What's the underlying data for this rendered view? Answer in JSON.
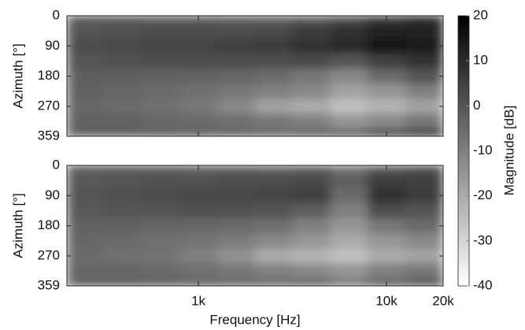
{
  "chart_data": {
    "type": "heatmap",
    "xlabel": "Frequency [Hz]",
    "ylabel": "Azimuth [°]",
    "xscale": "log",
    "xlim": [
      200,
      20000
    ],
    "xticks": [
      {
        "value": 1000,
        "label": "1k"
      },
      {
        "value": 10000,
        "label": "10k"
      },
      {
        "value": 20000,
        "label": "20k"
      }
    ],
    "ylim": [
      0,
      359
    ],
    "yticks": [
      0,
      90,
      180,
      270,
      359
    ],
    "x": [
      250,
      400,
      630,
      1000,
      1600,
      2500,
      4000,
      6300,
      10000,
      16000
    ],
    "y": [
      0,
      45,
      90,
      135,
      180,
      225,
      270,
      315,
      359
    ],
    "colormap": [
      "#ffffff",
      "#000000"
    ],
    "colorbar": {
      "label": "Magnitude [dB]",
      "lim": [
        -40,
        20
      ],
      "ticks": [
        -40,
        -30,
        -20,
        -10,
        0,
        10,
        20
      ]
    },
    "panels": [
      {
        "z": [
          [
            -2,
            -2,
            -3,
            -3,
            -4,
            -5,
            -3,
            0,
            5,
            8
          ],
          [
            0,
            1,
            2,
            2,
            2,
            3,
            6,
            8,
            12,
            12
          ],
          [
            2,
            3,
            4,
            4,
            5,
            6,
            8,
            10,
            15,
            14
          ],
          [
            0,
            1,
            2,
            2,
            2,
            2,
            3,
            0,
            5,
            8
          ],
          [
            -2,
            -2,
            -3,
            -3,
            -4,
            -5,
            -8,
            -12,
            -5,
            0
          ],
          [
            -3,
            -4,
            -5,
            -6,
            -8,
            -10,
            -12,
            -18,
            -15,
            -10
          ],
          [
            -4,
            -5,
            -6,
            -8,
            -12,
            -18,
            -20,
            -25,
            -22,
            -18
          ],
          [
            -3,
            -3,
            -4,
            -5,
            -6,
            -8,
            -10,
            -15,
            -12,
            -8
          ],
          [
            -2,
            -2,
            -3,
            -3,
            -4,
            -5,
            -3,
            -2,
            3,
            6
          ]
        ]
      },
      {
        "z": [
          [
            -3,
            -3,
            -3,
            -4,
            -4,
            -5,
            -4,
            -8,
            -3,
            0
          ],
          [
            -1,
            0,
            1,
            1,
            2,
            2,
            3,
            -2,
            6,
            5
          ],
          [
            0,
            1,
            2,
            3,
            3,
            4,
            5,
            -5,
            8,
            6
          ],
          [
            -1,
            0,
            0,
            1,
            1,
            0,
            -2,
            -10,
            2,
            0
          ],
          [
            -3,
            -3,
            -4,
            -4,
            -5,
            -6,
            -10,
            -15,
            -8,
            -5
          ],
          [
            -4,
            -5,
            -6,
            -7,
            -9,
            -12,
            -15,
            -20,
            -15,
            -12
          ],
          [
            -5,
            -6,
            -7,
            -10,
            -14,
            -20,
            -22,
            -25,
            -20,
            -18
          ],
          [
            -4,
            -4,
            -5,
            -6,
            -8,
            -10,
            -12,
            -15,
            -10,
            -8
          ],
          [
            -3,
            -3,
            -3,
            -4,
            -4,
            -5,
            -4,
            -8,
            -3,
            0
          ]
        ]
      }
    ]
  }
}
